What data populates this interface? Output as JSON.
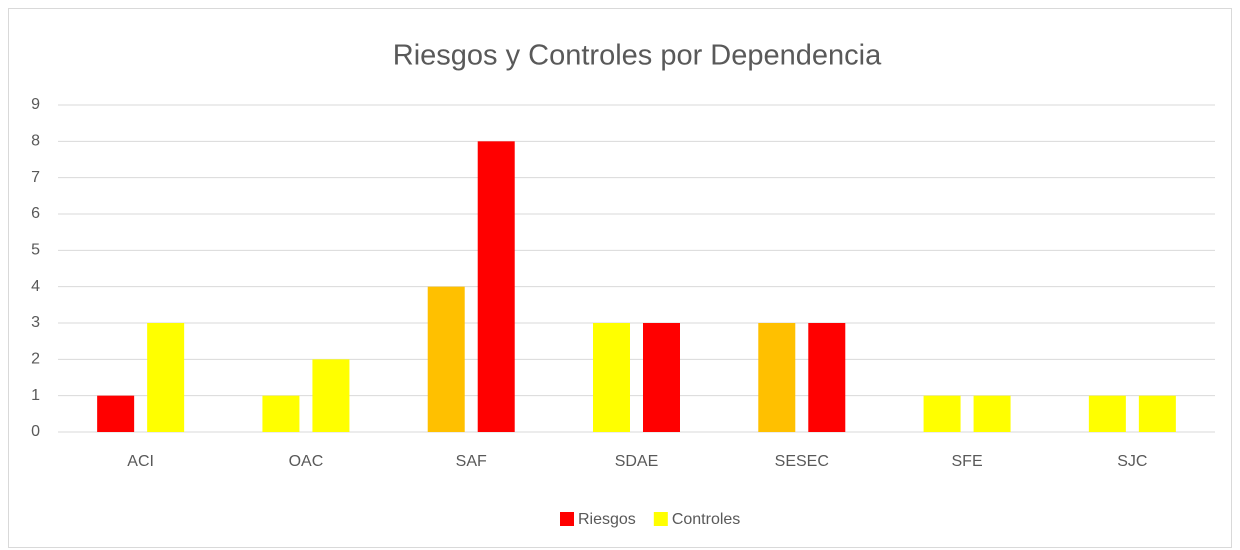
{
  "chart_data": {
    "type": "bar",
    "title": "Riesgos y Controles por Dependencia",
    "categories": [
      "ACI",
      "OAC",
      "SAF",
      "SDAE",
      "SESEC",
      "SFE",
      "SJC"
    ],
    "series": [
      {
        "name": "Riesgos",
        "color": "#ff0000",
        "values": [
          1,
          1,
          4,
          3,
          3,
          1,
          1
        ],
        "colors": [
          "#ff0000",
          "#ffff00",
          "#ffc000",
          "#ffff00",
          "#ffc000",
          "#ffff00",
          "#ffff00"
        ]
      },
      {
        "name": "Controles",
        "color": "#ffff00",
        "values": [
          3,
          2,
          8,
          3,
          3,
          1,
          1
        ],
        "colors": [
          "#ffff00",
          "#ffff00",
          "#ff0000",
          "#ff0000",
          "#ff0000",
          "#ffff00",
          "#ffff00"
        ]
      }
    ],
    "ylim": [
      0,
      9
    ],
    "yticks": [
      0,
      1,
      2,
      3,
      4,
      5,
      6,
      7,
      8,
      9
    ],
    "grid": true,
    "legend": "bottom"
  }
}
